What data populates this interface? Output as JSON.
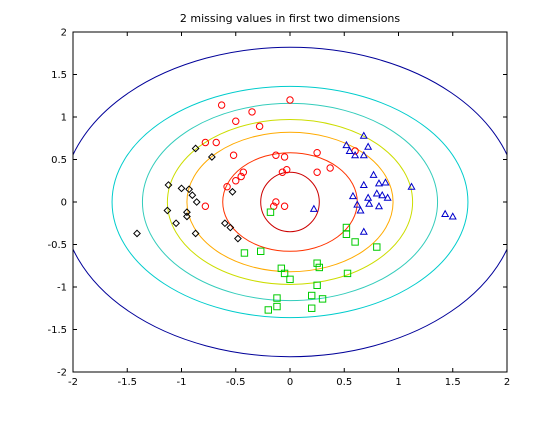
{
  "chart_data": {
    "type": "scatter",
    "title": "2 missing values in first two dimensions",
    "xlabel": "",
    "ylabel": "",
    "xlim": [
      -2,
      2
    ],
    "ylim": [
      -2,
      2
    ],
    "x_ticks": [
      -2,
      -1.5,
      -1,
      -0.5,
      0,
      0.5,
      1,
      1.5,
      2
    ],
    "y_ticks": [
      -2,
      -1.5,
      -1,
      -0.5,
      0,
      0.5,
      1,
      1.5,
      2
    ],
    "x_tick_labels": [
      "-2",
      "-1.5",
      "-1",
      "-0.5",
      "0",
      "0.5",
      "1",
      "1.5",
      "2"
    ],
    "y_tick_labels": [
      "-2",
      "-1.5",
      "-1",
      "-0.5",
      "0",
      "0.5",
      "1",
      "1.5",
      "2"
    ],
    "grid": false,
    "legend": "none",
    "contours": {
      "center": [
        0,
        0
      ],
      "radii": [
        {
          "rx": 0.27,
          "ry": 0.35,
          "color": "#cc0000"
        },
        {
          "rx": 0.62,
          "ry": 0.58,
          "color": "#ff3300"
        },
        {
          "rx": 0.95,
          "ry": 0.82,
          "color": "#ffaa00"
        },
        {
          "rx": 1.13,
          "ry": 0.97,
          "color": "#ccdd00"
        },
        {
          "rx": 1.36,
          "ry": 1.16,
          "color": "#33ccbb"
        },
        {
          "rx": 1.64,
          "ry": 1.36,
          "color": "#00cccc"
        },
        {
          "rx": 2.1,
          "ry": 1.82,
          "color": "#000099"
        }
      ]
    },
    "series": [
      {
        "marker": "circle",
        "color": "#ff0000",
        "points": [
          [
            0.0,
            1.2
          ],
          [
            -0.63,
            1.14
          ],
          [
            -0.35,
            1.06
          ],
          [
            -0.5,
            0.95
          ],
          [
            -0.28,
            0.89
          ],
          [
            -0.78,
            0.7
          ],
          [
            -0.68,
            0.7
          ],
          [
            -0.52,
            0.55
          ],
          [
            -0.13,
            0.55
          ],
          [
            -0.05,
            0.53
          ],
          [
            0.25,
            0.58
          ],
          [
            0.6,
            0.6
          ],
          [
            -0.43,
            0.35
          ],
          [
            0.37,
            0.4
          ],
          [
            -0.03,
            0.38
          ],
          [
            0.25,
            0.35
          ],
          [
            -0.5,
            0.25
          ],
          [
            -0.58,
            0.18
          ],
          [
            -0.78,
            -0.05
          ],
          [
            -0.07,
            0.35
          ],
          [
            -0.15,
            -0.05
          ],
          [
            -0.13,
            0.0
          ],
          [
            -0.05,
            -0.05
          ],
          [
            -0.45,
            0.3
          ]
        ]
      },
      {
        "marker": "diamond",
        "color": "#000000",
        "points": [
          [
            -0.87,
            0.63
          ],
          [
            -0.72,
            0.53
          ],
          [
            -1.12,
            0.2
          ],
          [
            -1.0,
            0.16
          ],
          [
            -0.93,
            0.15
          ],
          [
            -0.53,
            0.12
          ],
          [
            -0.9,
            0.08
          ],
          [
            -0.86,
            0.0
          ],
          [
            -1.13,
            -0.1
          ],
          [
            -0.95,
            -0.12
          ],
          [
            -0.95,
            -0.17
          ],
          [
            -0.6,
            -0.25
          ],
          [
            -1.05,
            -0.25
          ],
          [
            -0.55,
            -0.3
          ],
          [
            -1.41,
            -0.37
          ],
          [
            -0.48,
            -0.43
          ],
          [
            -0.87,
            -0.37
          ]
        ]
      },
      {
        "marker": "triangle",
        "color": "#0000cc",
        "points": [
          [
            0.68,
            0.78
          ],
          [
            0.52,
            0.67
          ],
          [
            0.72,
            0.65
          ],
          [
            0.55,
            0.6
          ],
          [
            0.68,
            0.55
          ],
          [
            0.6,
            0.55
          ],
          [
            0.77,
            0.32
          ],
          [
            0.82,
            0.22
          ],
          [
            0.88,
            0.23
          ],
          [
            1.12,
            0.18
          ],
          [
            0.68,
            0.2
          ],
          [
            0.58,
            0.07
          ],
          [
            0.8,
            0.1
          ],
          [
            0.85,
            0.08
          ],
          [
            0.72,
            0.05
          ],
          [
            0.62,
            -0.03
          ],
          [
            0.73,
            -0.02
          ],
          [
            0.82,
            -0.05
          ],
          [
            0.9,
            0.05
          ],
          [
            0.22,
            -0.08
          ],
          [
            0.65,
            -0.1
          ],
          [
            1.43,
            -0.14
          ],
          [
            1.5,
            -0.17
          ],
          [
            0.68,
            -0.35
          ]
        ]
      },
      {
        "marker": "square",
        "color": "#00cc00",
        "points": [
          [
            -0.42,
            -0.6
          ],
          [
            -0.18,
            -0.12
          ],
          [
            0.52,
            -0.3
          ],
          [
            0.52,
            -0.38
          ],
          [
            0.6,
            -0.47
          ],
          [
            0.8,
            -0.53
          ],
          [
            -0.27,
            -0.58
          ],
          [
            -0.08,
            -0.78
          ],
          [
            0.25,
            -0.72
          ],
          [
            -0.05,
            -0.84
          ],
          [
            0.0,
            -0.91
          ],
          [
            0.27,
            -0.77
          ],
          [
            0.53,
            -0.84
          ],
          [
            0.25,
            -0.98
          ],
          [
            0.2,
            -1.1
          ],
          [
            -0.12,
            -1.13
          ],
          [
            0.3,
            -1.14
          ],
          [
            -0.12,
            -1.23
          ],
          [
            0.2,
            -1.25
          ],
          [
            -0.2,
            -1.27
          ]
        ]
      }
    ]
  }
}
